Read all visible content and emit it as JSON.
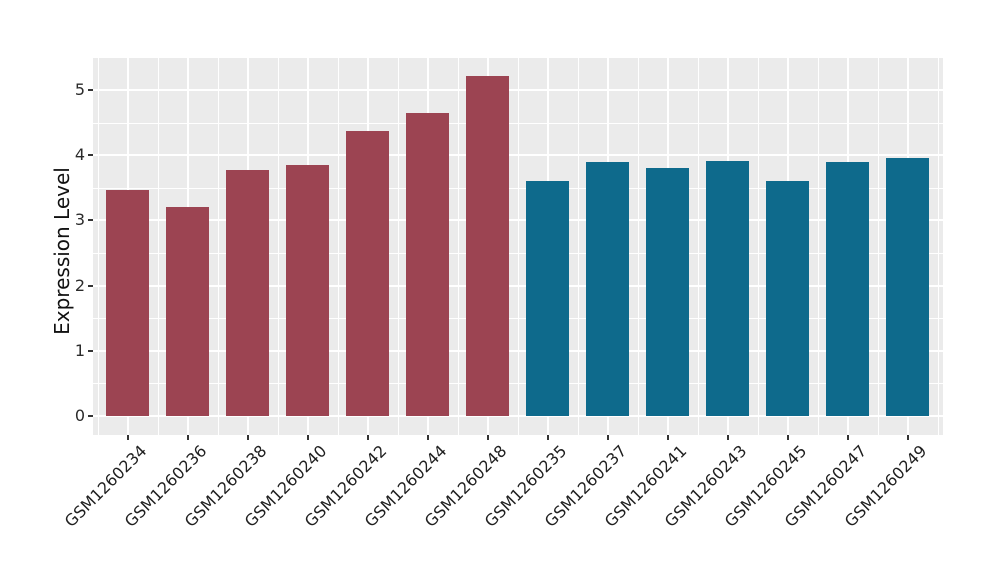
{
  "chart_data": {
    "type": "bar",
    "title": "",
    "xlabel": "",
    "ylabel": "Expression Level",
    "legend": "none",
    "grid": "white major and minor gridlines on gray panel",
    "panel_bg": "#EBEBEB",
    "axis_text_color": "#2b2b2b",
    "yticks": [
      0,
      1,
      2,
      3,
      4,
      5
    ],
    "ylim": [
      -0.29,
      5.51
    ],
    "categories": [
      "GSM1260234",
      "GSM1260236",
      "GSM1260238",
      "GSM1260240",
      "GSM1260242",
      "GSM1260244",
      "GSM1260248",
      "GSM1260235",
      "GSM1260237",
      "GSM1260241",
      "GSM1260243",
      "GSM1260245",
      "GSM1260247",
      "GSM1260249"
    ],
    "values": [
      3.46,
      3.2,
      3.77,
      3.85,
      4.37,
      4.64,
      5.22,
      3.6,
      3.89,
      3.81,
      3.91,
      3.6,
      3.89,
      3.95
    ],
    "groups": [
      "group1",
      "group1",
      "group1",
      "group1",
      "group1",
      "group1",
      "group1",
      "group2",
      "group2",
      "group2",
      "group2",
      "group2",
      "group2",
      "group2"
    ],
    "group_colors": {
      "group1": "#9C4452",
      "group2": "#0E6A8C"
    }
  }
}
